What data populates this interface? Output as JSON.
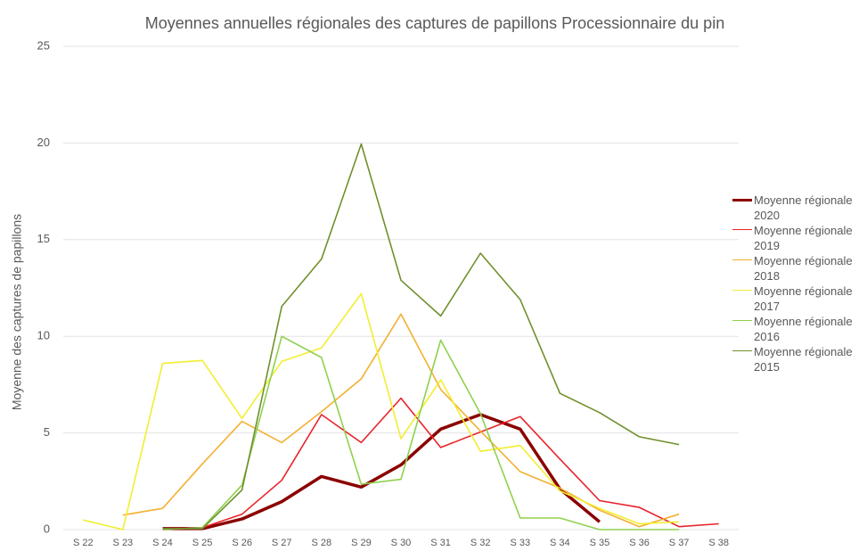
{
  "chart_data": {
    "type": "line",
    "title": "Moyennes annuelles régionales des captures de papillons Processionnaire du pin",
    "y_label": "Moyenne des captures de papillons",
    "categories": [
      "S 22",
      "S 23",
      "S 24",
      "S 25",
      "S 26",
      "S 27",
      "S 28",
      "S 29",
      "S 30",
      "S 31",
      "S 32",
      "S 33",
      "S 34",
      "S 35",
      "S 36",
      "S 37",
      "S 38"
    ],
    "series": [
      {
        "name": "Moyenne régionale 2020",
        "color": "#8b0000",
        "values": [
          null,
          null,
          0.05,
          0.05,
          0.55,
          1.45,
          2.75,
          2.2,
          3.35,
          5.2,
          5.95,
          5.2,
          2.1,
          0.4,
          null,
          null,
          null
        ]
      },
      {
        "name": "Moyenne régionale 2019",
        "color": "#e8232a",
        "values": [
          null,
          null,
          0,
          0.1,
          0.8,
          2.55,
          5.95,
          4.5,
          6.8,
          4.25,
          5.05,
          5.85,
          3.65,
          1.5,
          1.15,
          0.15,
          0.3
        ]
      },
      {
        "name": "Moyenne régionale 2018",
        "color": "#f4b030",
        "values": [
          null,
          0.75,
          1.1,
          3.4,
          5.6,
          4.5,
          6.1,
          7.8,
          11.15,
          7.25,
          5.1,
          3.0,
          2.15,
          1.0,
          0.15,
          0.8,
          null
        ]
      },
      {
        "name": "Moyenne régionale 2017",
        "color": "#f2ee30",
        "values": [
          0.5,
          0,
          8.6,
          8.75,
          5.75,
          8.7,
          9.4,
          12.2,
          4.7,
          7.75,
          4.05,
          4.35,
          2.0,
          1.1,
          0.3,
          0.4,
          null
        ]
      },
      {
        "name": "Moyenne régionale 2016",
        "color": "#8fd14f",
        "values": [
          null,
          null,
          0,
          0.1,
          2.3,
          10.0,
          8.9,
          2.35,
          2.6,
          9.8,
          6.0,
          0.6,
          0.6,
          0,
          0,
          0,
          null
        ]
      },
      {
        "name": "Moyenne régionale 2015",
        "color": "#70902c",
        "values": [
          null,
          null,
          0.05,
          0.05,
          2.05,
          11.55,
          14.0,
          19.95,
          12.9,
          11.05,
          14.3,
          11.9,
          7.05,
          6.05,
          4.8,
          4.4,
          null
        ]
      }
    ],
    "ylim": [
      0,
      25
    ],
    "yticks": [
      0,
      5,
      10,
      15,
      20,
      25
    ],
    "grid": true
  }
}
